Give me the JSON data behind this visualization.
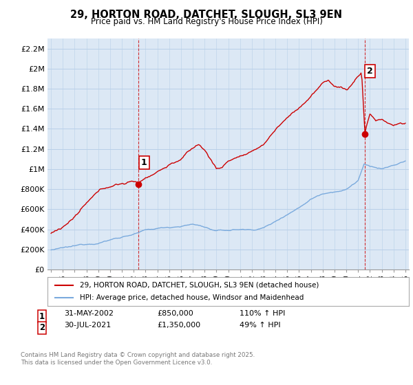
{
  "title": "29, HORTON ROAD, DATCHET, SLOUGH, SL3 9EN",
  "subtitle": "Price paid vs. HM Land Registry's House Price Index (HPI)",
  "ylim": [
    0,
    2300000
  ],
  "yticks": [
    0,
    200000,
    400000,
    600000,
    800000,
    1000000,
    1200000,
    1400000,
    1600000,
    1800000,
    2000000,
    2200000
  ],
  "ytick_labels": [
    "£0",
    "£200K",
    "£400K",
    "£600K",
    "£800K",
    "£1M",
    "£1.2M",
    "£1.4M",
    "£1.6M",
    "£1.8M",
    "£2M",
    "£2.2M"
  ],
  "xlim_start": 1994.7,
  "xlim_end": 2025.3,
  "xticks": [
    1995,
    1996,
    1997,
    1998,
    1999,
    2000,
    2001,
    2002,
    2003,
    2004,
    2005,
    2006,
    2007,
    2008,
    2009,
    2010,
    2011,
    2012,
    2013,
    2014,
    2015,
    2016,
    2017,
    2018,
    2019,
    2020,
    2021,
    2022,
    2023,
    2024,
    2025
  ],
  "red_line_color": "#cc0000",
  "blue_line_color": "#7aaadd",
  "sale1_date": 2002.42,
  "sale1_price": 850000,
  "sale1_label": "1",
  "sale2_date": 2021.58,
  "sale2_price": 1350000,
  "sale2_label": "2",
  "legend_red": "29, HORTON ROAD, DATCHET, SLOUGH, SL3 9EN (detached house)",
  "legend_blue": "HPI: Average price, detached house, Windsor and Maidenhead",
  "footnote": "Contains HM Land Registry data © Crown copyright and database right 2025.\nThis data is licensed under the Open Government Licence v3.0.",
  "plot_bg_color": "#dce8f5",
  "background_color": "#ffffff",
  "grid_color": "#b8cfe8"
}
